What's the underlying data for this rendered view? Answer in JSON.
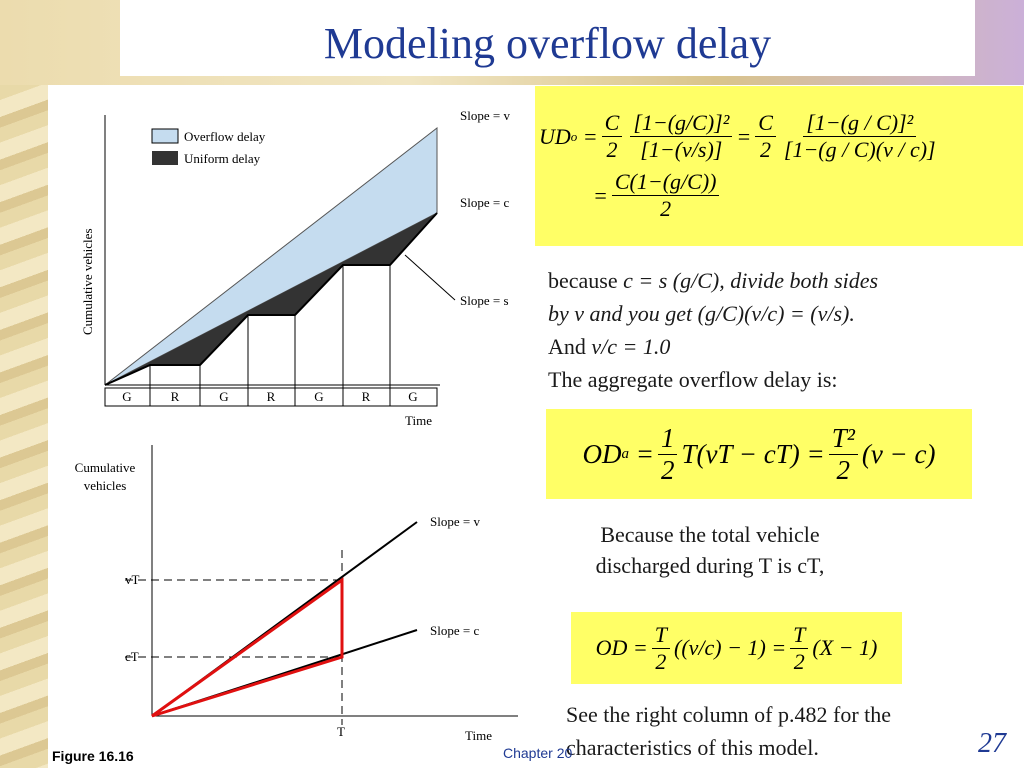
{
  "title": "Modeling overflow delay",
  "figure_top": {
    "legend": [
      "Overflow delay",
      "Uniform delay"
    ],
    "slopes": [
      "Slope = v",
      "Slope = c",
      "Slope = s"
    ],
    "y_label": "Cumulative vehicles",
    "x_label": "Time",
    "phases": [
      "G",
      "R",
      "G",
      "R",
      "G",
      "R",
      "G"
    ]
  },
  "figure_bottom": {
    "y_label": [
      "Cumulative",
      "vehicles"
    ],
    "slopes": [
      "Slope = v",
      "Slope = c"
    ],
    "y_marks": [
      "vT",
      "cT"
    ],
    "x_mark": "T",
    "x_label": "Time"
  },
  "caption": "Figure 16.16",
  "eq1": {
    "lhs": "UD",
    "sub": "o",
    "eq": "=",
    "f1": [
      "C",
      "2"
    ],
    "f2": [
      "[1−(g/C)]²",
      "[1−(v/s)]"
    ],
    "f3": [
      "C",
      "2"
    ],
    "f4": [
      "[1−(g / C)]²",
      "[1−(g / C)(v / c)]"
    ],
    "f5": [
      "C(1−(g/C))",
      "2"
    ]
  },
  "text1": [
    [
      "because ",
      "c = s (g/C), divide both sides"
    ],
    [
      "",
      "by v and you get (g/C)(v/c) = (v/s)."
    ],
    [
      "And ",
      "v/c = 1.0"
    ],
    [
      "The aggregate overflow delay is:",
      ""
    ]
  ],
  "eq2": {
    "lhs": "OD",
    "sub": "a",
    "eq": "=",
    "f1": [
      "1",
      "2"
    ],
    "mid": "T(vT − cT)",
    "f2": [
      "T²",
      "2"
    ],
    "tail": "(v − c)"
  },
  "text2": [
    "Because the total vehicle",
    "discharged during T is cT,"
  ],
  "eq3": {
    "lhs": "OD",
    "eq": "=",
    "f1": [
      "T",
      "2"
    ],
    "mid": "((v/c) − 1)",
    "f2": [
      "T",
      "2"
    ],
    "tail": "(X − 1)"
  },
  "text3": [
    "See the right column of p.482 for the",
    "characteristics of this model."
  ],
  "footer": "Chapter 20",
  "page_number": "27"
}
